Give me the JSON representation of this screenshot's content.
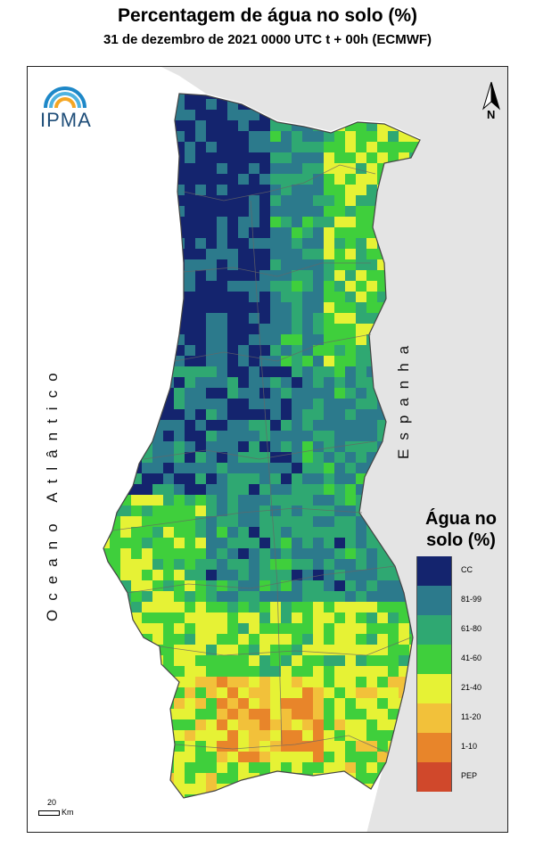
{
  "header": {
    "title": "Percentagem de água no solo (%)",
    "subtitle": "31 de dezembro de 2021 0000 UTC t + 00h (ECMWF)"
  },
  "logo": {
    "text": "IPMA",
    "colors": [
      "#1e88c8",
      "#4fb3e0",
      "#f5a623"
    ]
  },
  "north_arrow": {
    "label": "N"
  },
  "map_labels": {
    "ocean": "Oceano Atlântico",
    "spain": "Espanha"
  },
  "legend": {
    "title_line1": "Água no",
    "title_line2": "solo (%)",
    "classes": [
      {
        "label": "CC",
        "color": "#14246e"
      },
      {
        "label": "81-99",
        "color": "#2c7a8c"
      },
      {
        "label": "61-80",
        "color": "#2fa872"
      },
      {
        "label": "41-60",
        "color": "#3fcf3c"
      },
      {
        "label": "21-40",
        "color": "#e6f235"
      },
      {
        "label": "11-20",
        "color": "#f2c13a"
      },
      {
        "label": "1-10",
        "color": "#e8852a"
      },
      {
        "label": "PEP",
        "color": "#d0482b"
      }
    ]
  },
  "scale": {
    "value": "20",
    "unit": "Km"
  },
  "colors": {
    "spain_land": "#e4e4e4",
    "ocean": "#ffffff",
    "borders": "#555555"
  }
}
